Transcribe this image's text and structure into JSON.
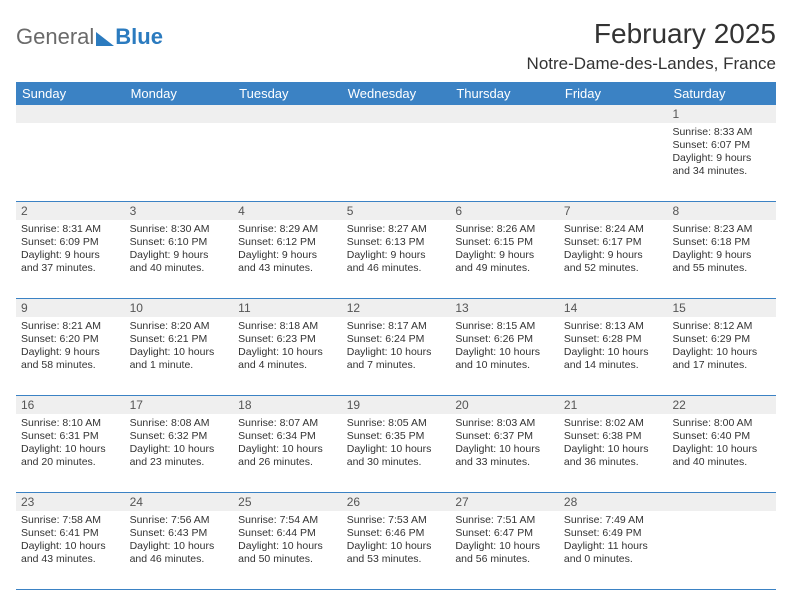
{
  "logo": {
    "text1": "General",
    "text2": "Blue"
  },
  "title": {
    "month": "February 2025",
    "location": "Notre-Dame-des-Landes, France"
  },
  "dayHeaders": [
    "Sunday",
    "Monday",
    "Tuesday",
    "Wednesday",
    "Thursday",
    "Friday",
    "Saturday"
  ],
  "colors": {
    "header_bg": "#3b82c4",
    "header_text": "#ffffff",
    "daynum_bg": "#efefef",
    "border": "#3b82c4",
    "text": "#333333",
    "logo_gray": "#6a6a6a",
    "logo_blue": "#2b7bbf"
  },
  "weeks": [
    {
      "nums": [
        "",
        "",
        "",
        "",
        "",
        "",
        "1"
      ],
      "cells": [
        [],
        [],
        [],
        [],
        [],
        [],
        [
          "Sunrise: 8:33 AM",
          "Sunset: 6:07 PM",
          "Daylight: 9 hours",
          "and 34 minutes."
        ]
      ]
    },
    {
      "nums": [
        "2",
        "3",
        "4",
        "5",
        "6",
        "7",
        "8"
      ],
      "cells": [
        [
          "Sunrise: 8:31 AM",
          "Sunset: 6:09 PM",
          "Daylight: 9 hours",
          "and 37 minutes."
        ],
        [
          "Sunrise: 8:30 AM",
          "Sunset: 6:10 PM",
          "Daylight: 9 hours",
          "and 40 minutes."
        ],
        [
          "Sunrise: 8:29 AM",
          "Sunset: 6:12 PM",
          "Daylight: 9 hours",
          "and 43 minutes."
        ],
        [
          "Sunrise: 8:27 AM",
          "Sunset: 6:13 PM",
          "Daylight: 9 hours",
          "and 46 minutes."
        ],
        [
          "Sunrise: 8:26 AM",
          "Sunset: 6:15 PM",
          "Daylight: 9 hours",
          "and 49 minutes."
        ],
        [
          "Sunrise: 8:24 AM",
          "Sunset: 6:17 PM",
          "Daylight: 9 hours",
          "and 52 minutes."
        ],
        [
          "Sunrise: 8:23 AM",
          "Sunset: 6:18 PM",
          "Daylight: 9 hours",
          "and 55 minutes."
        ]
      ]
    },
    {
      "nums": [
        "9",
        "10",
        "11",
        "12",
        "13",
        "14",
        "15"
      ],
      "cells": [
        [
          "Sunrise: 8:21 AM",
          "Sunset: 6:20 PM",
          "Daylight: 9 hours",
          "and 58 minutes."
        ],
        [
          "Sunrise: 8:20 AM",
          "Sunset: 6:21 PM",
          "Daylight: 10 hours",
          "and 1 minute."
        ],
        [
          "Sunrise: 8:18 AM",
          "Sunset: 6:23 PM",
          "Daylight: 10 hours",
          "and 4 minutes."
        ],
        [
          "Sunrise: 8:17 AM",
          "Sunset: 6:24 PM",
          "Daylight: 10 hours",
          "and 7 minutes."
        ],
        [
          "Sunrise: 8:15 AM",
          "Sunset: 6:26 PM",
          "Daylight: 10 hours",
          "and 10 minutes."
        ],
        [
          "Sunrise: 8:13 AM",
          "Sunset: 6:28 PM",
          "Daylight: 10 hours",
          "and 14 minutes."
        ],
        [
          "Sunrise: 8:12 AM",
          "Sunset: 6:29 PM",
          "Daylight: 10 hours",
          "and 17 minutes."
        ]
      ]
    },
    {
      "nums": [
        "16",
        "17",
        "18",
        "19",
        "20",
        "21",
        "22"
      ],
      "cells": [
        [
          "Sunrise: 8:10 AM",
          "Sunset: 6:31 PM",
          "Daylight: 10 hours",
          "and 20 minutes."
        ],
        [
          "Sunrise: 8:08 AM",
          "Sunset: 6:32 PM",
          "Daylight: 10 hours",
          "and 23 minutes."
        ],
        [
          "Sunrise: 8:07 AM",
          "Sunset: 6:34 PM",
          "Daylight: 10 hours",
          "and 26 minutes."
        ],
        [
          "Sunrise: 8:05 AM",
          "Sunset: 6:35 PM",
          "Daylight: 10 hours",
          "and 30 minutes."
        ],
        [
          "Sunrise: 8:03 AM",
          "Sunset: 6:37 PM",
          "Daylight: 10 hours",
          "and 33 minutes."
        ],
        [
          "Sunrise: 8:02 AM",
          "Sunset: 6:38 PM",
          "Daylight: 10 hours",
          "and 36 minutes."
        ],
        [
          "Sunrise: 8:00 AM",
          "Sunset: 6:40 PM",
          "Daylight: 10 hours",
          "and 40 minutes."
        ]
      ]
    },
    {
      "nums": [
        "23",
        "24",
        "25",
        "26",
        "27",
        "28",
        ""
      ],
      "cells": [
        [
          "Sunrise: 7:58 AM",
          "Sunset: 6:41 PM",
          "Daylight: 10 hours",
          "and 43 minutes."
        ],
        [
          "Sunrise: 7:56 AM",
          "Sunset: 6:43 PM",
          "Daylight: 10 hours",
          "and 46 minutes."
        ],
        [
          "Sunrise: 7:54 AM",
          "Sunset: 6:44 PM",
          "Daylight: 10 hours",
          "and 50 minutes."
        ],
        [
          "Sunrise: 7:53 AM",
          "Sunset: 6:46 PM",
          "Daylight: 10 hours",
          "and 53 minutes."
        ],
        [
          "Sunrise: 7:51 AM",
          "Sunset: 6:47 PM",
          "Daylight: 10 hours",
          "and 56 minutes."
        ],
        [
          "Sunrise: 7:49 AM",
          "Sunset: 6:49 PM",
          "Daylight: 11 hours",
          "and 0 minutes."
        ],
        []
      ]
    }
  ]
}
